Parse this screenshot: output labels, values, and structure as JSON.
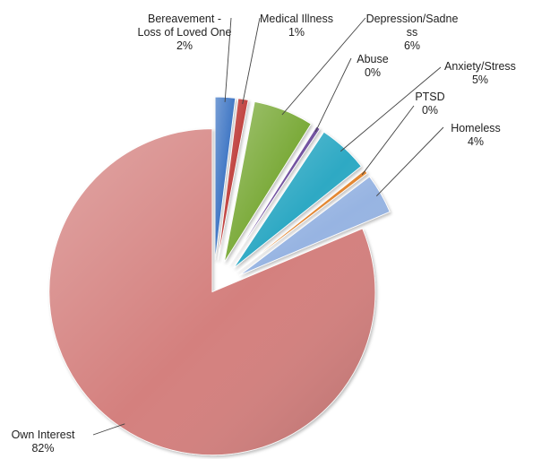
{
  "chart_data": {
    "type": "pie",
    "exploded": true,
    "start_angle_degrees": 0,
    "direction": "clockwise",
    "slices": [
      {
        "label_lines": [
          "Bereavement -",
          "Loss of Loved One"
        ],
        "value_label": "2%",
        "value": 2,
        "color": "#3d74c4"
      },
      {
        "label_lines": [
          "Medical Illness"
        ],
        "value_label": "1%",
        "value": 1,
        "color": "#c0403c"
      },
      {
        "label_lines": [
          "Depression/Sadne",
          "ss"
        ],
        "value_label": "6%",
        "value": 6,
        "color": "#7cab3a"
      },
      {
        "label_lines": [
          "Abuse"
        ],
        "value_label": "0%",
        "value": 0.4,
        "color": "#6f4f9e"
      },
      {
        "label_lines": [
          "Anxiety/Stress"
        ],
        "value_label": "5%",
        "value": 5,
        "color": "#2ea9c4"
      },
      {
        "label_lines": [
          "PTSD"
        ],
        "value_label": "0%",
        "value": 0.4,
        "color": "#e2852e"
      },
      {
        "label_lines": [
          "Homeless"
        ],
        "value_label": "4%",
        "value": 4,
        "color": "#97b4e2"
      },
      {
        "label_lines": [
          "Own Interest"
        ],
        "value_label": "82%",
        "value": 82,
        "color": "#d4807e"
      }
    ]
  }
}
